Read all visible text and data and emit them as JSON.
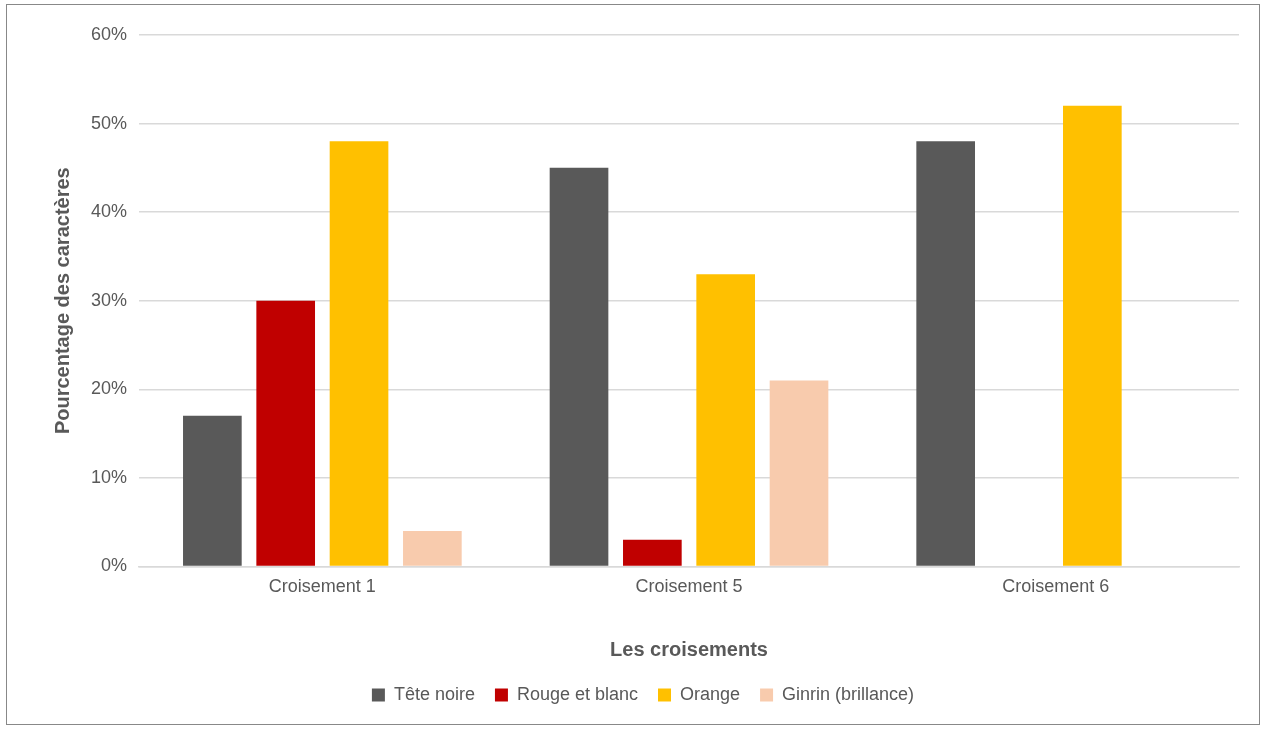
{
  "chart_data": {
    "type": "bar",
    "xlabel": "Les croisements",
    "ylabel": "Pourcentage des caractères",
    "categories": [
      "Croisement 1",
      "Croisement 5",
      "Croisement 6"
    ],
    "series": [
      {
        "name": "Tête noire",
        "color": "#595959",
        "values": [
          17,
          45,
          48
        ]
      },
      {
        "name": "Rouge et blanc",
        "color": "#c00000",
        "values": [
          30,
          3,
          0
        ]
      },
      {
        "name": "Orange",
        "color": "#ffc000",
        "values": [
          48,
          33,
          52
        ]
      },
      {
        "name": "Ginrin (brillance)",
        "color": "#f8cbad",
        "values": [
          4,
          21,
          0
        ]
      }
    ],
    "ylim": [
      0,
      60
    ],
    "yticks": [
      {
        "value": 0,
        "label": "0%"
      },
      {
        "value": 10,
        "label": "10%"
      },
      {
        "value": 20,
        "label": "20%"
      },
      {
        "value": 30,
        "label": "30%"
      },
      {
        "value": 40,
        "label": "40%"
      },
      {
        "value": 50,
        "label": "50%"
      },
      {
        "value": 60,
        "label": "60%"
      }
    ],
    "grid": "y",
    "legend": "bottom"
  }
}
